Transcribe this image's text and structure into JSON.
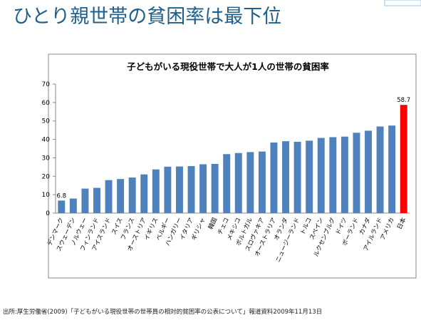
{
  "slide_title": "ひとり親世帯の貧困率は最下位",
  "chart_data": {
    "type": "bar",
    "title": "子どもがいる現役世帯で大人が1人の世帯の貧困率",
    "categories": [
      "デンマーク",
      "スウェーデン",
      "ノルウェー",
      "フィンランド",
      "アイスランド",
      "スイス",
      "フランス",
      "オーストリア",
      "イギリス",
      "ベルギー",
      "ハンガリー",
      "イタリア",
      "ギリシャ",
      "韓国",
      "チェコ",
      "メキシコ",
      "ポルトガル",
      "スロヴァキア",
      "オーストラリア",
      "オランダ",
      "ニュージーランド",
      "トルコ",
      "スペイン",
      "ルクセンブルグ",
      "ドイツ",
      "ポーランド",
      "カナダ",
      "アイルランド",
      "アメリカ",
      "日本"
    ],
    "values": [
      6.8,
      7.9,
      13.3,
      13.7,
      17.9,
      18.5,
      19.3,
      21.0,
      23.7,
      25.2,
      25.3,
      25.5,
      26.5,
      26.7,
      32.0,
      32.6,
      33.1,
      33.4,
      38.3,
      39.0,
      38.7,
      39.3,
      40.8,
      41.2,
      41.5,
      43.6,
      44.7,
      47.0,
      47.5,
      58.7
    ],
    "value_labels": [
      "6.8",
      null,
      null,
      null,
      null,
      null,
      null,
      null,
      null,
      null,
      null,
      null,
      null,
      null,
      null,
      null,
      null,
      null,
      null,
      null,
      null,
      null,
      null,
      null,
      null,
      null,
      null,
      null,
      null,
      "58.7"
    ],
    "colors": [
      "#4f81bd",
      "#4f81bd",
      "#4f81bd",
      "#4f81bd",
      "#4f81bd",
      "#4f81bd",
      "#4f81bd",
      "#4f81bd",
      "#4f81bd",
      "#4f81bd",
      "#4f81bd",
      "#4f81bd",
      "#4f81bd",
      "#4f81bd",
      "#4f81bd",
      "#4f81bd",
      "#4f81bd",
      "#4f81bd",
      "#4f81bd",
      "#4f81bd",
      "#4f81bd",
      "#4f81bd",
      "#4f81bd",
      "#4f81bd",
      "#4f81bd",
      "#4f81bd",
      "#4f81bd",
      "#4f81bd",
      "#4f81bd",
      "#ff0000"
    ],
    "ylim": [
      0,
      70
    ],
    "yticks": [
      0,
      10,
      20,
      30,
      40,
      50,
      60,
      70
    ],
    "grid": false
  },
  "source": "出所:厚生労働省(2009)「子どもがいる現役世帯の世帯員の相対的貧困率の公表について」報道資料2009年11月13日"
}
